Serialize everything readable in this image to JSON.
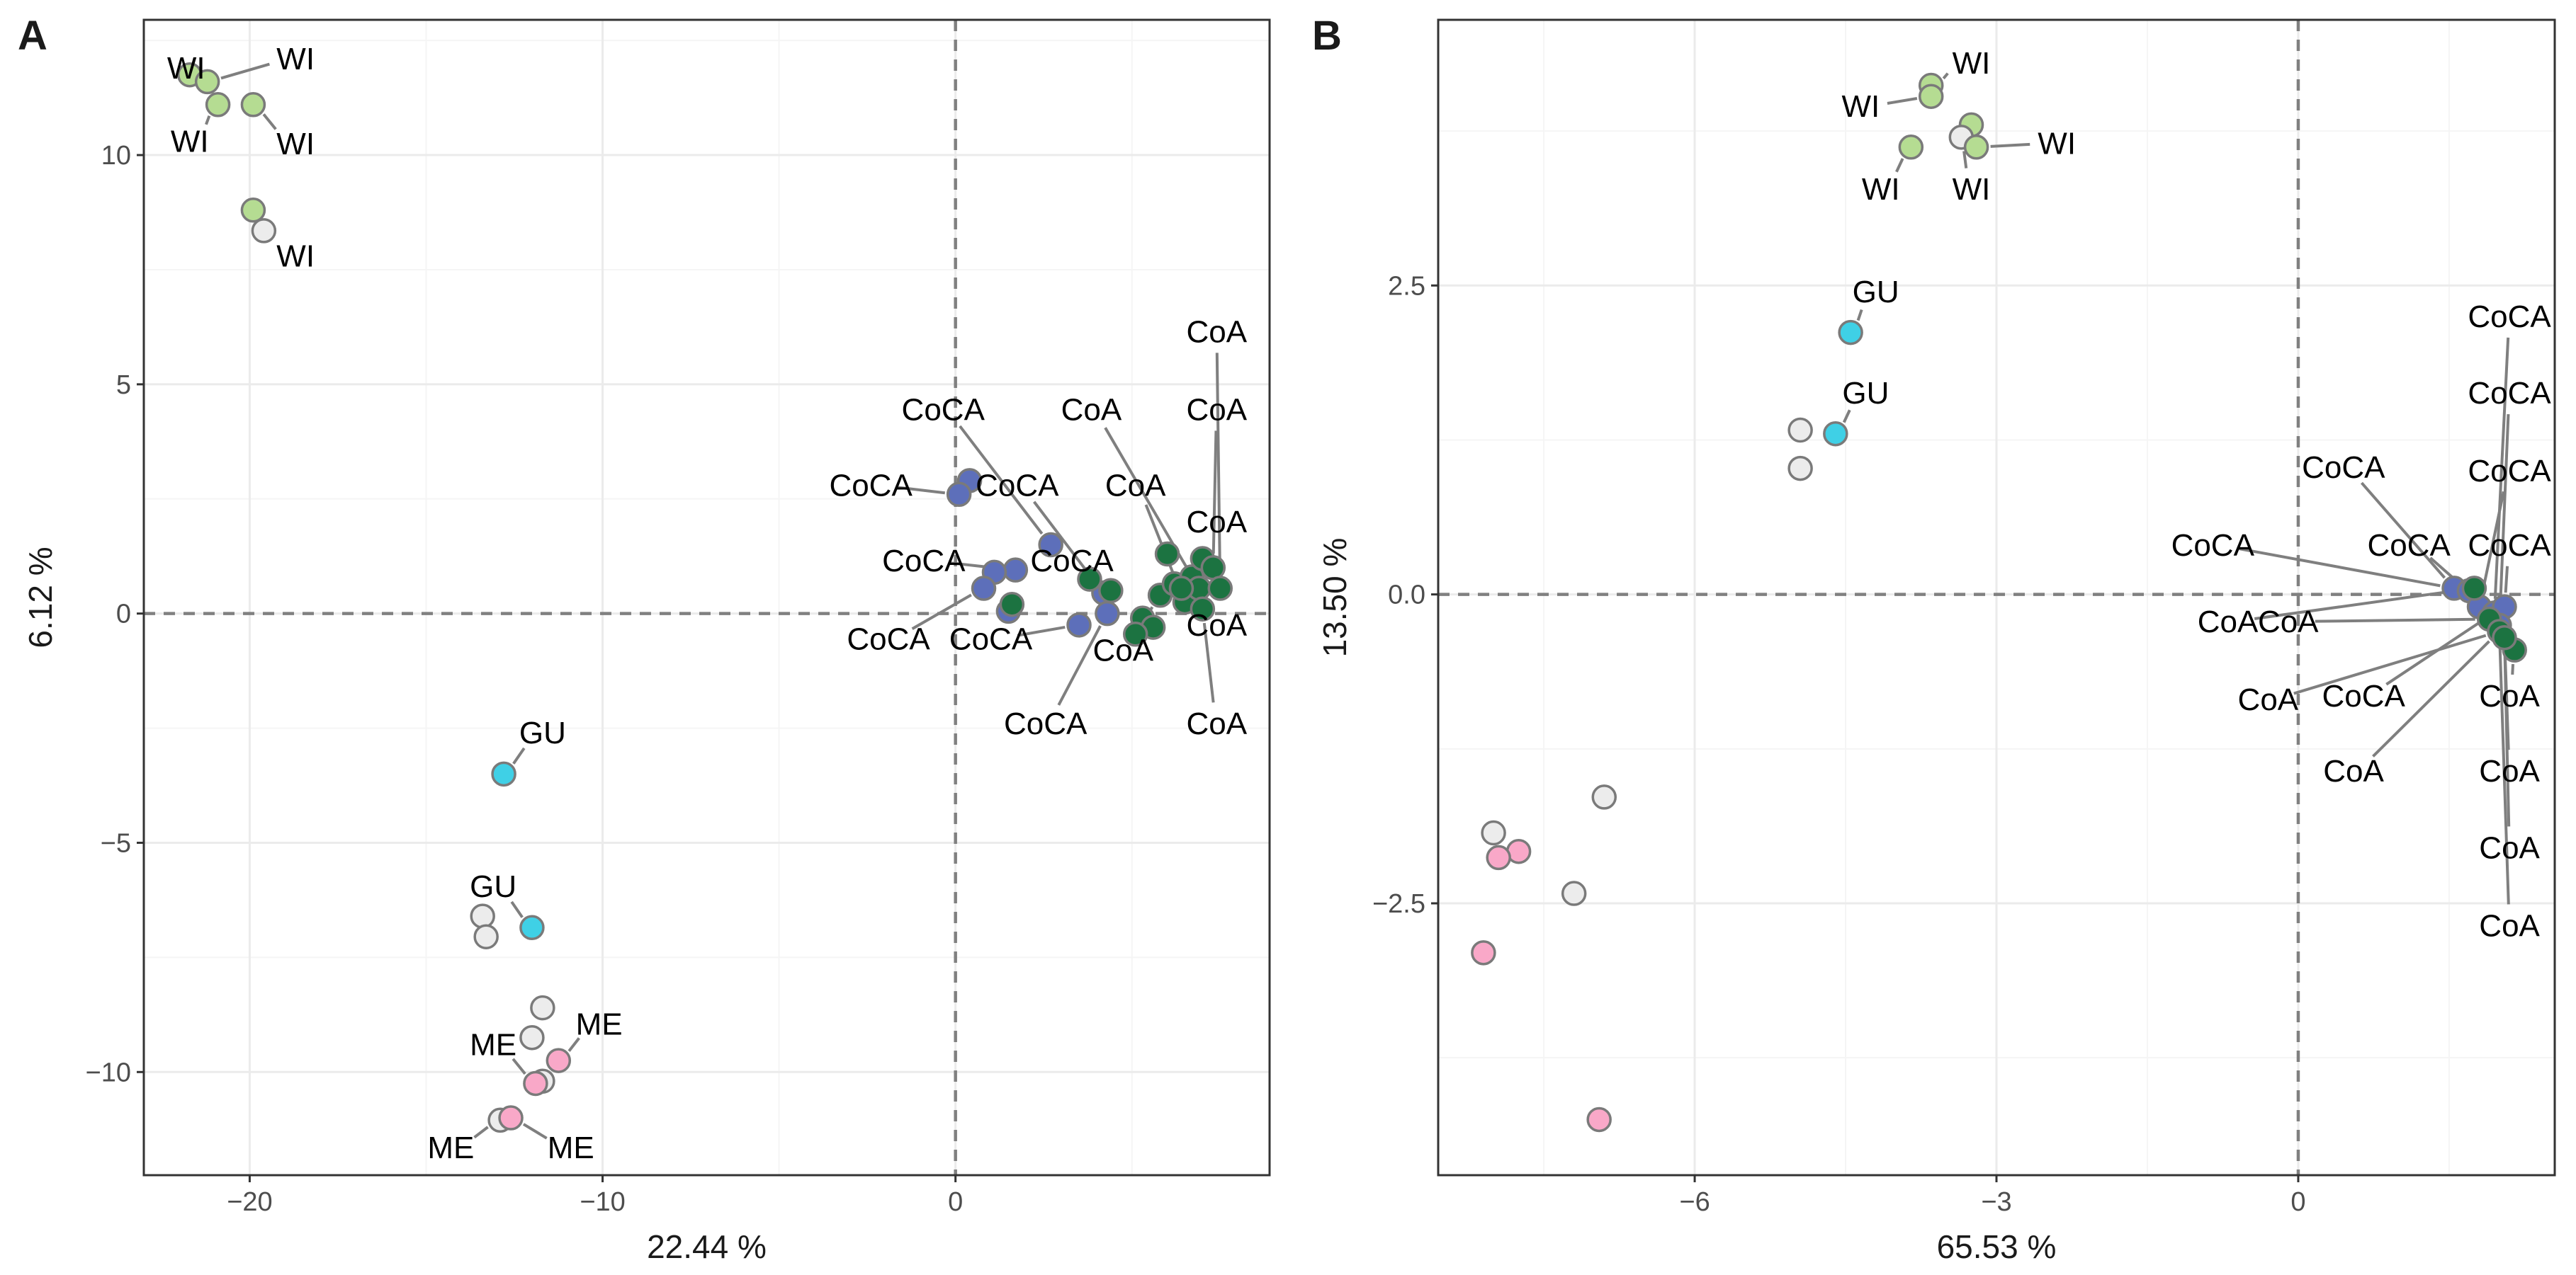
{
  "colors": {
    "WI": "#b5dc92",
    "GU": "#3fd0e6",
    "ME": "#f9a8c8",
    "CoA": "#1c7341",
    "CoCA": "#5d6fba",
    "unlabeled": "#ececec",
    "point_stroke": "#7a7a7a",
    "leader": "#7f7f7f",
    "grid_major": "#ebebeb",
    "grid_minor": "#f5f5f5",
    "zero_line": "#808080"
  },
  "chart_data": [
    {
      "panel": "A",
      "type": "scatter",
      "xlabel": "22.44 %",
      "ylabel": "6.12 %",
      "xlim": [
        -23.0,
        8.9
      ],
      "ylim": [
        -12.25,
        12.95
      ],
      "xticks": [
        -20,
        -10,
        0
      ],
      "xtick_labels": [
        "−20",
        "−10",
        "0"
      ],
      "yticks": [
        -10,
        -5,
        0,
        5,
        10
      ],
      "ytick_labels": [
        "−10",
        "−5",
        "0",
        "5",
        "10"
      ],
      "points": [
        {
          "x": -21.7,
          "y": 11.75,
          "g": "WI"
        },
        {
          "x": -21.2,
          "y": 11.6,
          "g": "WI"
        },
        {
          "x": -20.9,
          "y": 11.1,
          "g": "WI"
        },
        {
          "x": -19.9,
          "y": 11.1,
          "g": "WI"
        },
        {
          "x": -19.9,
          "y": 8.8,
          "g": "WI"
        },
        {
          "x": -19.6,
          "y": 8.35,
          "g": "unlabeled"
        },
        {
          "x": -12.8,
          "y": -3.5,
          "g": "GU"
        },
        {
          "x": -13.4,
          "y": -6.6,
          "g": "unlabeled"
        },
        {
          "x": -13.3,
          "y": -7.05,
          "g": "unlabeled"
        },
        {
          "x": -12.0,
          "y": -6.85,
          "g": "GU"
        },
        {
          "x": -11.7,
          "y": -8.6,
          "g": "unlabeled"
        },
        {
          "x": -12.0,
          "y": -9.25,
          "g": "unlabeled"
        },
        {
          "x": -11.25,
          "y": -9.75,
          "g": "ME"
        },
        {
          "x": -11.7,
          "y": -10.2,
          "g": "unlabeled"
        },
        {
          "x": -11.9,
          "y": -10.25,
          "g": "ME"
        },
        {
          "x": -12.9,
          "y": -11.05,
          "g": "unlabeled"
        },
        {
          "x": -12.6,
          "y": -11.0,
          "g": "ME"
        },
        {
          "x": 0.4,
          "y": 2.9,
          "g": "CoCA"
        },
        {
          "x": 0.1,
          "y": 2.6,
          "g": "CoCA"
        },
        {
          "x": 2.7,
          "y": 1.5,
          "g": "CoCA"
        },
        {
          "x": 1.7,
          "y": 0.95,
          "g": "CoCA"
        },
        {
          "x": 1.1,
          "y": 0.9,
          "g": "CoCA"
        },
        {
          "x": 0.8,
          "y": 0.55,
          "g": "CoCA"
        },
        {
          "x": 1.5,
          "y": 0.05,
          "g": "CoCA"
        },
        {
          "x": 3.5,
          "y": -0.25,
          "g": "CoCA"
        },
        {
          "x": 4.2,
          "y": 0.45,
          "g": "CoCA"
        },
        {
          "x": 4.3,
          "y": 0.0,
          "g": "CoCA"
        },
        {
          "x": 1.6,
          "y": 0.2,
          "g": "CoA"
        },
        {
          "x": 3.8,
          "y": 0.75,
          "g": "CoA"
        },
        {
          "x": 4.4,
          "y": 0.5,
          "g": "CoA"
        },
        {
          "x": 5.3,
          "y": -0.1,
          "g": "CoA"
        },
        {
          "x": 5.8,
          "y": 0.4,
          "g": "CoA"
        },
        {
          "x": 6.0,
          "y": 1.3,
          "g": "CoA"
        },
        {
          "x": 6.2,
          "y": 0.65,
          "g": "CoA"
        },
        {
          "x": 6.5,
          "y": 0.25,
          "g": "CoA"
        },
        {
          "x": 6.7,
          "y": 0.8,
          "g": "CoA"
        },
        {
          "x": 6.9,
          "y": 0.55,
          "g": "CoA"
        },
        {
          "x": 7.0,
          "y": 1.2,
          "g": "CoA"
        },
        {
          "x": 7.3,
          "y": 1.0,
          "g": "CoA"
        },
        {
          "x": 7.5,
          "y": 0.55,
          "g": "CoA"
        },
        {
          "x": 5.6,
          "y": -0.3,
          "g": "CoA"
        },
        {
          "x": 5.1,
          "y": -0.45,
          "g": "CoA"
        },
        {
          "x": 7.0,
          "y": 0.1,
          "g": "CoA"
        },
        {
          "x": 6.4,
          "y": 0.55,
          "g": "CoA"
        }
      ],
      "labels": [
        {
          "text": "WI",
          "x": -21.8,
          "y": 11.9,
          "px": -21.7,
          "py": 11.75
        },
        {
          "text": "WI",
          "x": -18.7,
          "y": 12.1,
          "px": -21.2,
          "py": 11.6
        },
        {
          "text": "WI",
          "x": -21.7,
          "y": 10.3,
          "px": -20.9,
          "py": 11.1
        },
        {
          "text": "WI",
          "x": -18.7,
          "y": 10.25,
          "px": -19.9,
          "py": 11.1
        },
        {
          "text": "WI",
          "x": -18.7,
          "y": 7.8,
          "px": -19.6,
          "py": 8.35
        },
        {
          "text": "GU",
          "x": -11.7,
          "y": -2.6,
          "px": -12.8,
          "py": -3.5
        },
        {
          "text": "GU",
          "x": -13.1,
          "y": -5.95,
          "px": -12.0,
          "py": -6.85
        },
        {
          "text": "ME",
          "x": -10.1,
          "y": -8.95,
          "px": -11.25,
          "py": -9.75
        },
        {
          "text": "ME",
          "x": -13.1,
          "y": -9.4,
          "px": -11.9,
          "py": -10.25
        },
        {
          "text": "ME",
          "x": -14.3,
          "y": -11.65,
          "px": -12.9,
          "py": -11.05
        },
        {
          "text": "ME",
          "x": -10.9,
          "y": -11.65,
          "px": -12.6,
          "py": -11.0
        },
        {
          "text": "CoA",
          "x": 7.4,
          "y": 6.15,
          "px": 7.5,
          "py": 0.55
        },
        {
          "text": "CoCA",
          "x": -0.35,
          "y": 4.45,
          "px": 2.7,
          "py": 1.5
        },
        {
          "text": "CoA",
          "x": 3.85,
          "y": 4.45,
          "px": 6.9,
          "py": 0.55
        },
        {
          "text": "CoA",
          "x": 7.4,
          "y": 4.45,
          "px": 7.3,
          "py": 1.0
        },
        {
          "text": "CoCA",
          "x": -2.4,
          "y": 2.8,
          "px": 0.1,
          "py": 2.6
        },
        {
          "text": "CoCA",
          "x": 1.75,
          "y": 2.8,
          "px": 4.2,
          "py": 0.45
        },
        {
          "text": "CoA",
          "x": 5.1,
          "y": 2.8,
          "px": 6.5,
          "py": 0.25
        },
        {
          "text": "CoA",
          "x": 7.4,
          "y": 2.0,
          "px": 7.0,
          "py": 1.2
        },
        {
          "text": "CoCA",
          "x": -0.9,
          "y": 1.15,
          "px": 1.7,
          "py": 0.95
        },
        {
          "text": "CoCA",
          "x": 3.3,
          "y": 1.15,
          "px": 3.8,
          "py": 0.75
        },
        {
          "text": "CoCA",
          "x": -1.9,
          "y": -0.55,
          "px": 0.8,
          "py": 0.55
        },
        {
          "text": "CoCA",
          "x": 1.0,
          "y": -0.55,
          "px": 3.5,
          "py": -0.25
        },
        {
          "text": "CoA",
          "x": 7.4,
          "y": -0.25,
          "px": 6.7,
          "py": 0.8
        },
        {
          "text": "CoA",
          "x": 4.75,
          "y": -0.8,
          "px": 5.8,
          "py": 0.4
        },
        {
          "text": "CoCA",
          "x": 2.55,
          "y": -2.4,
          "px": 4.3,
          "py": 0.0
        },
        {
          "text": "CoA",
          "x": 7.4,
          "y": -2.4,
          "px": 7.0,
          "py": 0.1
        }
      ]
    },
    {
      "panel": "B",
      "type": "scatter",
      "xlabel": "65.53 %",
      "ylabel": "13.50 %",
      "xlim": [
        -8.55,
        2.55
      ],
      "ylim": [
        -4.7,
        4.65
      ],
      "xticks": [
        -6,
        -3,
        0
      ],
      "xtick_labels": [
        "−6",
        "−3",
        "0"
      ],
      "yticks": [
        -2.5,
        0,
        2.5
      ],
      "ytick_labels": [
        "−2.5",
        "0.0",
        "2.5"
      ],
      "points": [
        {
          "x": -3.65,
          "y": 4.12,
          "g": "WI"
        },
        {
          "x": -3.65,
          "y": 4.03,
          "g": "WI"
        },
        {
          "x": -3.25,
          "y": 3.8,
          "g": "WI"
        },
        {
          "x": -3.35,
          "y": 3.7,
          "g": "unlabeled"
        },
        {
          "x": -3.2,
          "y": 3.62,
          "g": "WI"
        },
        {
          "x": -3.85,
          "y": 3.62,
          "g": "WI"
        },
        {
          "x": -4.45,
          "y": 2.12,
          "g": "GU"
        },
        {
          "x": -4.95,
          "y": 1.33,
          "g": "unlabeled"
        },
        {
          "x": -4.6,
          "y": 1.3,
          "g": "GU"
        },
        {
          "x": -4.95,
          "y": 1.02,
          "g": "unlabeled"
        },
        {
          "x": -6.9,
          "y": -1.64,
          "g": "unlabeled"
        },
        {
          "x": -8.0,
          "y": -1.93,
          "g": "unlabeled"
        },
        {
          "x": -7.75,
          "y": -2.08,
          "g": "ME"
        },
        {
          "x": -7.95,
          "y": -2.13,
          "g": "ME"
        },
        {
          "x": -7.2,
          "y": -2.42,
          "g": "unlabeled"
        },
        {
          "x": -8.1,
          "y": -2.9,
          "g": "ME"
        },
        {
          "x": -6.95,
          "y": -4.25,
          "g": "ME"
        },
        {
          "x": 1.55,
          "y": 0.05,
          "g": "CoCA"
        },
        {
          "x": 1.7,
          "y": 0.03,
          "g": "CoCA"
        },
        {
          "x": 1.8,
          "y": -0.1,
          "g": "CoCA"
        },
        {
          "x": 1.95,
          "y": -0.15,
          "g": "CoCA"
        },
        {
          "x": 2.05,
          "y": -0.1,
          "g": "CoCA"
        },
        {
          "x": 2.0,
          "y": -0.25,
          "g": "CoCA"
        },
        {
          "x": 1.75,
          "y": 0.05,
          "g": "CoA"
        },
        {
          "x": 1.9,
          "y": -0.2,
          "g": "CoA"
        },
        {
          "x": 2.0,
          "y": -0.3,
          "g": "CoA"
        },
        {
          "x": 2.15,
          "y": -0.45,
          "g": "CoA"
        },
        {
          "x": 2.05,
          "y": -0.35,
          "g": "CoA"
        }
      ],
      "labels": [
        {
          "text": "WI",
          "x": -3.25,
          "y": 4.3,
          "px": -3.65,
          "py": 4.12
        },
        {
          "text": "WI",
          "x": -4.35,
          "y": 3.95,
          "px": -3.65,
          "py": 4.03
        },
        {
          "text": "WI",
          "x": -2.4,
          "y": 3.65,
          "px": -3.2,
          "py": 3.62
        },
        {
          "text": "WI",
          "x": -4.15,
          "y": 3.28,
          "px": -3.85,
          "py": 3.62
        },
        {
          "text": "WI",
          "x": -3.25,
          "y": 3.28,
          "px": -3.35,
          "py": 3.7
        },
        {
          "text": "GU",
          "x": -4.2,
          "y": 2.45,
          "px": -4.45,
          "py": 2.12
        },
        {
          "text": "GU",
          "x": -4.3,
          "y": 1.63,
          "px": -4.6,
          "py": 1.3
        },
        {
          "text": "CoCA",
          "x": 2.1,
          "y": 2.25,
          "px": 1.95,
          "py": -0.15
        },
        {
          "text": "CoCA",
          "x": 2.1,
          "y": 1.63,
          "px": 2.0,
          "py": -0.25
        },
        {
          "text": "CoCA",
          "x": 0.45,
          "y": 1.03,
          "px": 1.55,
          "py": 0.05
        },
        {
          "text": "CoCA",
          "x": 2.1,
          "y": 1.0,
          "px": 1.8,
          "py": -0.1
        },
        {
          "text": "CoCA",
          "x": -0.85,
          "y": 0.4,
          "px": 1.55,
          "py": 0.05
        },
        {
          "text": "CoCA",
          "x": 1.1,
          "y": 0.4,
          "px": 1.7,
          "py": 0.03
        },
        {
          "text": "CoCA",
          "x": 2.1,
          "y": 0.4,
          "px": 2.05,
          "py": -0.1
        },
        {
          "text": "CoA",
          "x": -0.7,
          "y": -0.22,
          "px": 1.75,
          "py": 0.05
        },
        {
          "text": "CoA",
          "x": -0.1,
          "y": -0.22,
          "px": 1.9,
          "py": -0.2
        },
        {
          "text": "CoA",
          "x": -0.3,
          "y": -0.85,
          "px": 2.0,
          "py": -0.3
        },
        {
          "text": "CoCA",
          "x": 0.65,
          "y": -0.82,
          "px": 1.95,
          "py": -0.15
        },
        {
          "text": "CoA",
          "x": 2.1,
          "y": -0.82,
          "px": 2.15,
          "py": -0.45
        },
        {
          "text": "CoA",
          "x": 0.55,
          "y": -1.43,
          "px": 2.0,
          "py": -0.3
        },
        {
          "text": "CoA",
          "x": 2.1,
          "y": -1.43,
          "px": 2.05,
          "py": -0.35
        },
        {
          "text": "CoA",
          "x": 2.1,
          "y": -2.05,
          "px": 2.05,
          "py": -0.35
        },
        {
          "text": "CoA",
          "x": 2.1,
          "y": -2.68,
          "px": 2.0,
          "py": -0.3
        }
      ]
    }
  ]
}
